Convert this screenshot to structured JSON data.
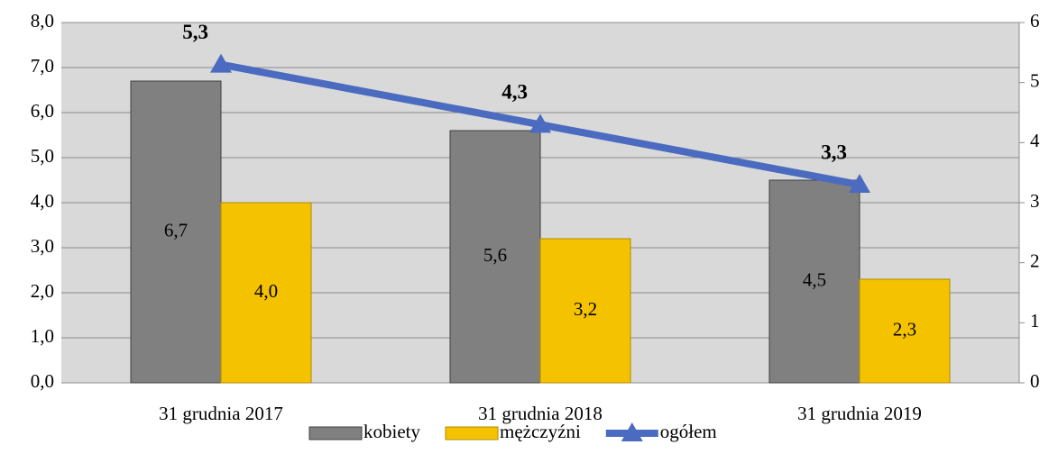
{
  "chart_data": {
    "type": "bar",
    "categories": [
      "31 grudnia 2017",
      "31 grudnia 2018",
      "31 grudnia 2019"
    ],
    "series": [
      {
        "name": "kobiety",
        "type": "bar",
        "color": "#808080",
        "values": [
          6.7,
          5.6,
          4.5
        ],
        "value_labels": [
          "6,7",
          "5,6",
          "4,5"
        ]
      },
      {
        "name": "mężczyźni",
        "type": "bar",
        "color": "#f5c200",
        "values": [
          4.0,
          3.2,
          2.3
        ],
        "value_labels": [
          "4,0",
          "3,2",
          "2,3"
        ]
      },
      {
        "name": "ogółem",
        "type": "line",
        "axis": "y2",
        "color": "#4a6bbf",
        "values": [
          5.3,
          4.3,
          3.3
        ],
        "value_labels": [
          "5,3",
          "4,3",
          "3,3"
        ]
      }
    ],
    "ylim": [
      0,
      8
    ],
    "yticks": [
      {
        "value": 0,
        "label": "0,0"
      },
      {
        "value": 1,
        "label": "1,0"
      },
      {
        "value": 2,
        "label": "2,0"
      },
      {
        "value": 3,
        "label": "3,0"
      },
      {
        "value": 4,
        "label": "4,0"
      },
      {
        "value": 5,
        "label": "5,0"
      },
      {
        "value": 6,
        "label": "6,0"
      },
      {
        "value": 7,
        "label": "7,0"
      },
      {
        "value": 8,
        "label": "8,0"
      }
    ],
    "y2lim": [
      0,
      6
    ],
    "y2ticks": [
      0,
      1,
      2,
      3,
      4,
      5,
      6
    ],
    "grid": true,
    "legend": "bottom"
  }
}
